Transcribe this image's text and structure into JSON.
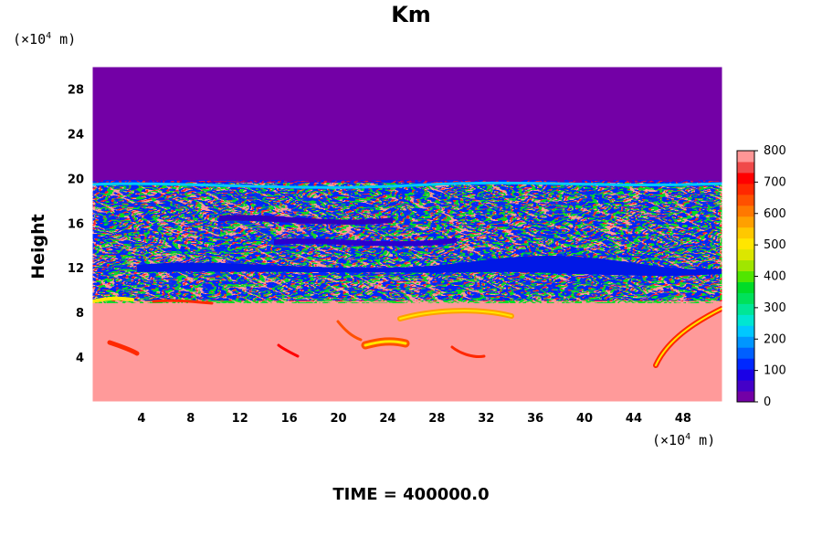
{
  "chart_data": {
    "type": "heatmap",
    "title": "Km",
    "xlabel": "",
    "ylabel": "Height",
    "x_unit": "(×10",
    "y_unit": "(×10",
    "unit_exp": "4",
    "unit_tail": " m)",
    "x_ticks": [
      "4",
      "8",
      "12",
      "16",
      "20",
      "24",
      "28",
      "32",
      "36",
      "40",
      "44",
      "48"
    ],
    "x_tick_values": [
      4,
      8,
      12,
      16,
      20,
      24,
      28,
      32,
      36,
      40,
      44,
      48
    ],
    "xlim": [
      0,
      51.2
    ],
    "y_ticks": [
      "4",
      "8",
      "12",
      "16",
      "20",
      "24",
      "28"
    ],
    "y_tick_values": [
      4,
      8,
      12,
      16,
      20,
      24,
      28
    ],
    "ylim": [
      0,
      30
    ],
    "colorbar": {
      "ticks": [
        "0",
        "100",
        "200",
        "300",
        "400",
        "500",
        "600",
        "700",
        "800"
      ],
      "tick_values": [
        0,
        100,
        200,
        300,
        400,
        500,
        600,
        700,
        800
      ],
      "range": [
        0,
        800
      ],
      "colors": [
        "#7300a6",
        "#4400c8",
        "#1a00e6",
        "#0028ff",
        "#0060ff",
        "#0096ff",
        "#00c8ff",
        "#00e6d2",
        "#00e696",
        "#00e15a",
        "#00dc28",
        "#50e600",
        "#a0e600",
        "#dce600",
        "#ffe600",
        "#ffc800",
        "#ffa000",
        "#ff7800",
        "#ff5000",
        "#ff2800",
        "#ff0000",
        "#f04a4a",
        "#ff9696"
      ]
    },
    "field_description_layers": [
      {
        "from": 0,
        "to": 10,
        "dominant_value": 800
      },
      {
        "from": 10,
        "to": 19.5,
        "mixed": true
      },
      {
        "from": 19.5,
        "to": 30,
        "dominant_value": 0
      }
    ],
    "footer": "TIME = 400000.0"
  }
}
